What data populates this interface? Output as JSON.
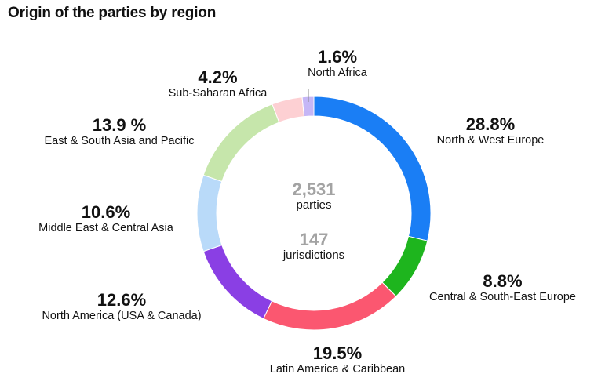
{
  "chart_data": {
    "type": "pie",
    "title": "Origin of the parties by region",
    "center": {
      "parties_value": "2,531",
      "parties_label": "parties",
      "jurisdictions_value": "147",
      "jurisdictions_label": "jurisdictions"
    },
    "slices": [
      {
        "name": "North & West Europe",
        "value": 28.8,
        "label": "28.8%",
        "color": "#1a7ef5"
      },
      {
        "name": "Central & South-East Europe",
        "value": 8.8,
        "label": "8.8%",
        "color": "#1eb51e"
      },
      {
        "name": "Latin America & Caribbean",
        "value": 19.5,
        "label": "19.5%",
        "color": "#fb5770"
      },
      {
        "name": "North America (USA & Canada)",
        "value": 12.6,
        "label": "12.6%",
        "color": "#8a3fe4"
      },
      {
        "name": "Middle East & Central Asia",
        "value": 10.6,
        "label": "10.6%",
        "color": "#b9daf9"
      },
      {
        "name": "East & South Asia and Pacific",
        "value": 13.9,
        "label": "13.9 %",
        "color": "#c6e6ab"
      },
      {
        "name": "Sub-Saharan Africa",
        "value": 4.2,
        "label": "4.2%",
        "color": "#fdd0d3"
      },
      {
        "name": "North Africa",
        "value": 1.6,
        "label": "1.6%",
        "color": "#c5b6f6"
      }
    ]
  }
}
